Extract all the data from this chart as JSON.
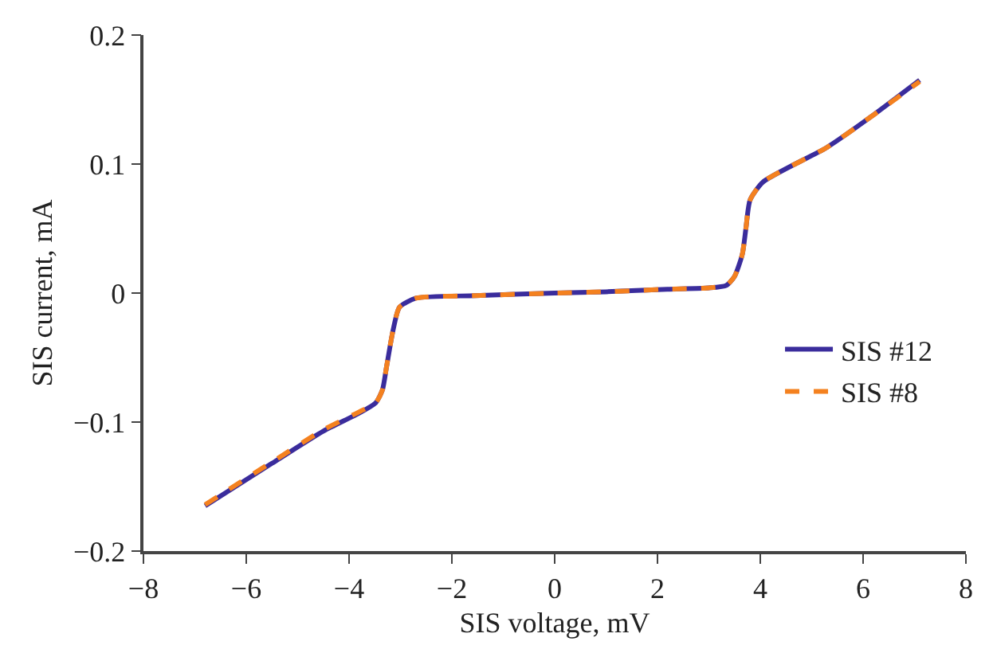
{
  "chart_data": {
    "type": "line",
    "xlabel": "SIS voltage, mV",
    "ylabel": "SIS current, mA",
    "xlim": [
      -8,
      8
    ],
    "ylim": [
      -0.2,
      0.2
    ],
    "xticks": [
      {
        "value": -8,
        "label": "−8"
      },
      {
        "value": -6,
        "label": "−6"
      },
      {
        "value": -4,
        "label": "−4"
      },
      {
        "value": -2,
        "label": "−2"
      },
      0,
      2,
      4,
      6,
      8
    ],
    "yticks": [
      {
        "value": -0.2,
        "label": "−0.2"
      },
      {
        "value": -0.1,
        "label": "−0.1"
      },
      0,
      0.1,
      0.2
    ],
    "grid": false,
    "legend": "right",
    "marker": "none",
    "series": [
      {
        "name": "SIS #12",
        "color": "#3a2c9c",
        "line_style": "solid",
        "x": [
          -6.8,
          -5.5,
          -4.5,
          -3.8,
          -3.48,
          -3.35,
          -3.27,
          -3.15,
          -3.02,
          -2.7,
          -1.55,
          0,
          1,
          2.19,
          3.0,
          3.34,
          3.5,
          3.65,
          3.72,
          3.8,
          4.05,
          5.3,
          6.2,
          7.1
        ],
        "values": [
          -0.165,
          -0.132,
          -0.107,
          -0.093,
          -0.085,
          -0.075,
          -0.057,
          -0.03,
          -0.011,
          -0.004,
          -0.002,
          0,
          0.001,
          0.003,
          0.004,
          0.006,
          0.013,
          0.03,
          0.05,
          0.072,
          0.086,
          0.113,
          0.138,
          0.165
        ]
      },
      {
        "name": "SIS #8",
        "color": "#f4811f",
        "line_style": "dashed",
        "x": [
          -6.8,
          -5.5,
          -4.5,
          -3.8,
          -3.48,
          -3.35,
          -3.27,
          -3.15,
          -3.02,
          -2.7,
          -1.55,
          0,
          1,
          2.19,
          3.0,
          3.34,
          3.5,
          3.65,
          3.72,
          3.8,
          4.05,
          5.3,
          6.2,
          7.1
        ],
        "values": [
          -0.164,
          -0.131,
          -0.106,
          -0.092,
          -0.085,
          -0.075,
          -0.057,
          -0.03,
          -0.011,
          -0.004,
          -0.002,
          0,
          0.001,
          0.003,
          0.004,
          0.006,
          0.013,
          0.03,
          0.05,
          0.072,
          0.086,
          0.113,
          0.138,
          0.164
        ]
      }
    ]
  }
}
